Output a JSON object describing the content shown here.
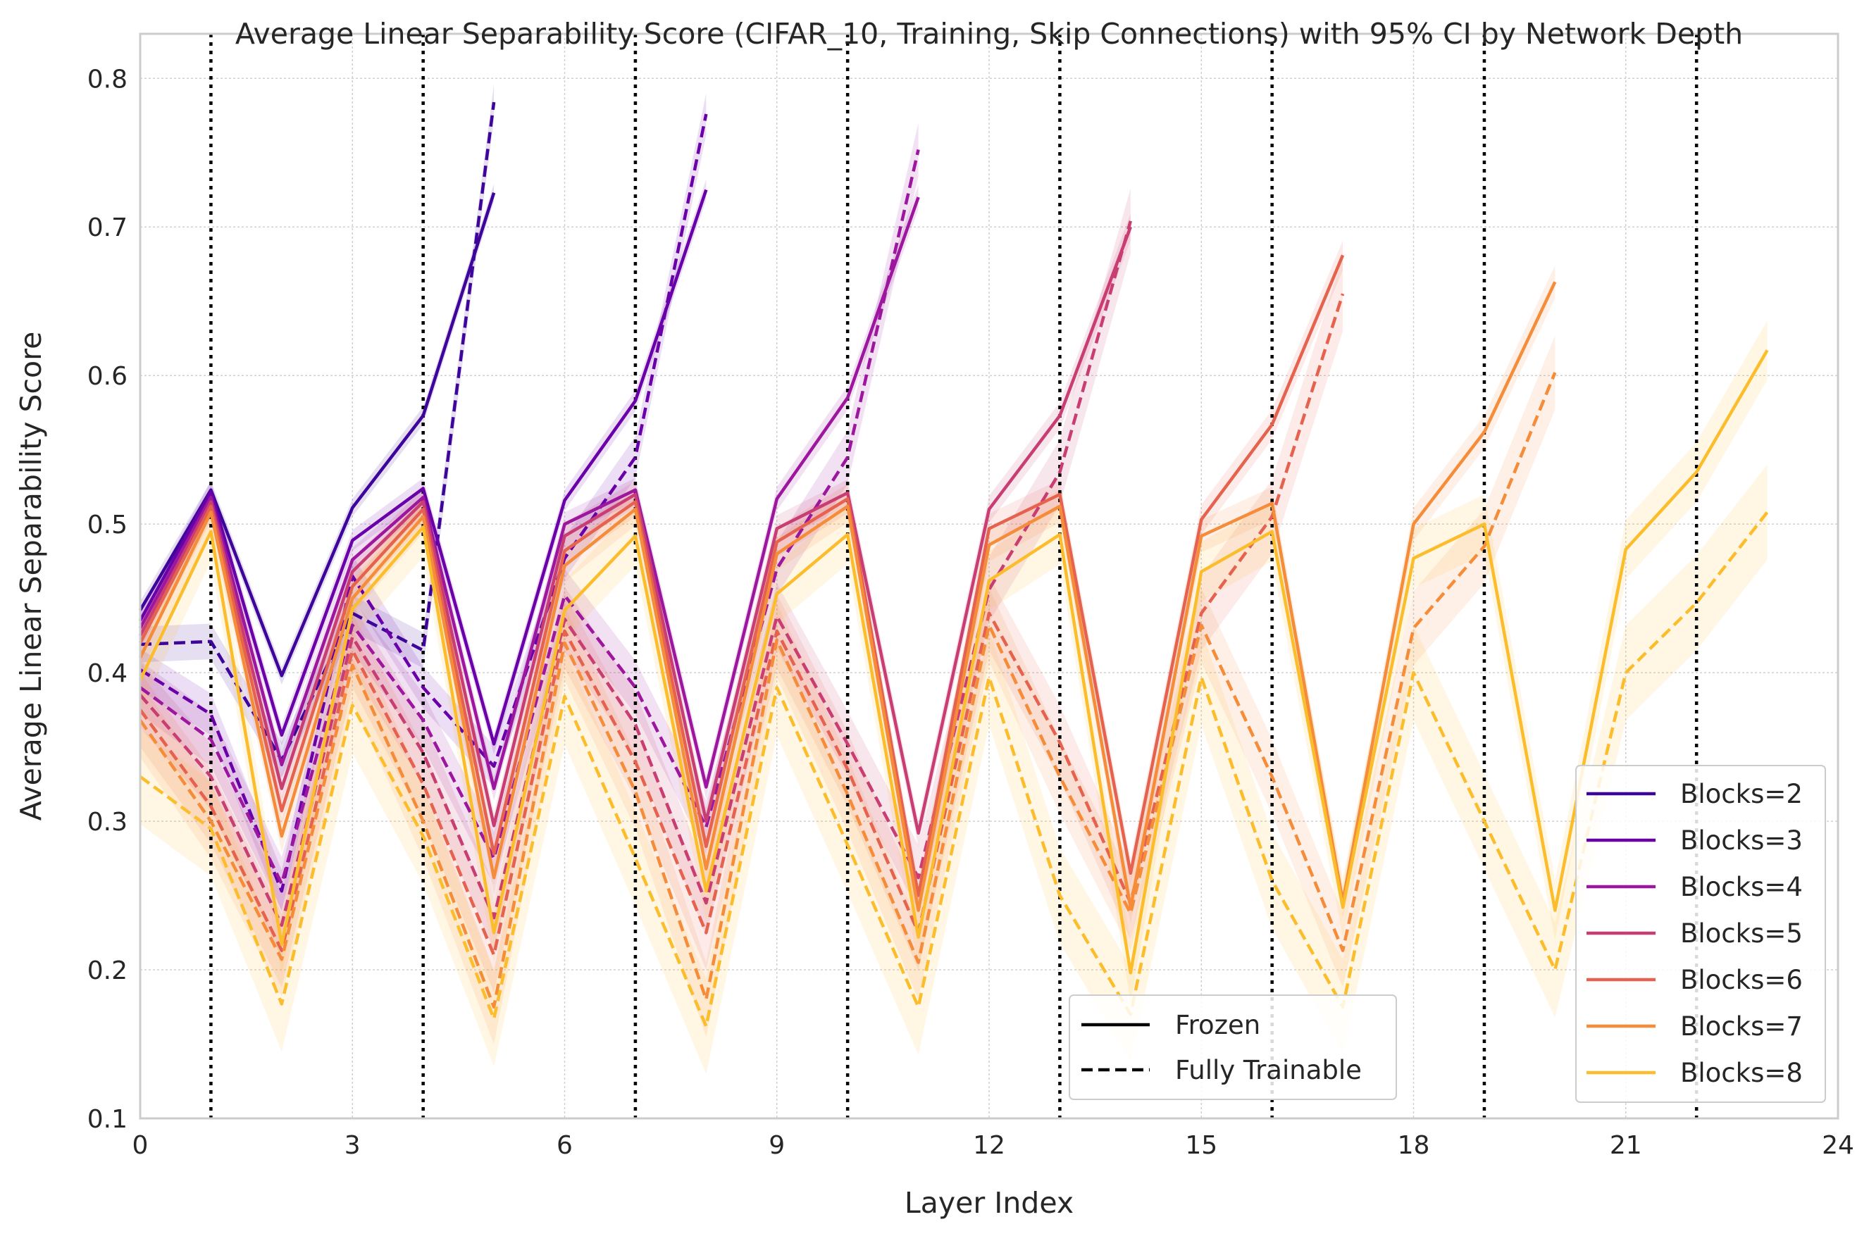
{
  "chart_data": {
    "type": "line",
    "title": "Average Linear Separability Score (CIFAR_10, Training, Skip Connections) with 95% CI by Network Depth",
    "xlabel": "Layer Index",
    "ylabel": "Average Linear Separability Score",
    "xlim": [
      0,
      24
    ],
    "ylim": [
      0.1,
      0.83
    ],
    "xticks": [
      0,
      3,
      6,
      9,
      12,
      15,
      18,
      21,
      24
    ],
    "yticks": [
      0.1,
      0.2,
      0.3,
      0.4,
      0.5,
      0.6,
      0.7,
      0.8
    ],
    "grid": true,
    "block_boundaries": [
      1,
      4,
      7,
      10,
      13,
      16,
      19,
      22
    ],
    "style_legend": {
      "placement": "lower-center",
      "items": [
        {
          "label": "Frozen",
          "dash": "solid"
        },
        {
          "label": "Fully Trainable",
          "dash": "dashed"
        }
      ]
    },
    "series_legend_placement": "lower-right",
    "series": [
      {
        "name": "Blocks=2",
        "color": "#3d0599",
        "frozen": [
          0.442,
          0.523,
          0.398,
          0.511,
          0.573,
          0.723
        ],
        "frozen_ci": 0.006,
        "trainable": [
          0.419,
          0.421,
          0.341,
          0.44,
          0.415,
          0.784
        ],
        "trainable_ci": 0.012
      },
      {
        "name": "Blocks=3",
        "color": "#6a00a8",
        "frozen": [
          0.435,
          0.522,
          0.358,
          0.489,
          0.524,
          0.352,
          0.516,
          0.583,
          0.725
        ],
        "frozen_ci": 0.007,
        "trainable": [
          0.402,
          0.372,
          0.253,
          0.465,
          0.39,
          0.337,
          0.477,
          0.545,
          0.776
        ],
        "trainable_ci": 0.014
      },
      {
        "name": "Blocks=4",
        "color": "#9c179e",
        "frozen": [
          0.43,
          0.518,
          0.338,
          0.476,
          0.518,
          0.322,
          0.5,
          0.523,
          0.323,
          0.517,
          0.585,
          0.72
        ],
        "frozen_ci": 0.008,
        "trainable": [
          0.39,
          0.355,
          0.258,
          0.432,
          0.368,
          0.275,
          0.452,
          0.39,
          0.296,
          0.47,
          0.545,
          0.752
        ],
        "trainable_ci": 0.018
      },
      {
        "name": "Blocks=5",
        "color": "#c83e73",
        "frozen": [
          0.425,
          0.515,
          0.322,
          0.468,
          0.515,
          0.297,
          0.492,
          0.52,
          0.3,
          0.497,
          0.521,
          0.292,
          0.51,
          0.573,
          0.7
        ],
        "frozen_ci": 0.009,
        "trainable": [
          0.385,
          0.33,
          0.23,
          0.424,
          0.346,
          0.235,
          0.436,
          0.365,
          0.245,
          0.438,
          0.352,
          0.262,
          0.456,
          0.535,
          0.704
        ],
        "trainable_ci": 0.022
      },
      {
        "name": "Blocks=6",
        "color": "#e5624f",
        "frozen": [
          0.42,
          0.512,
          0.307,
          0.458,
          0.51,
          0.278,
          0.482,
          0.515,
          0.283,
          0.488,
          0.517,
          0.25,
          0.497,
          0.52,
          0.265,
          0.503,
          0.567,
          0.681
        ],
        "frozen_ci": 0.01,
        "trainable": [
          0.375,
          0.31,
          0.213,
          0.415,
          0.325,
          0.21,
          0.428,
          0.34,
          0.225,
          0.428,
          0.335,
          0.225,
          0.44,
          0.353,
          0.245,
          0.44,
          0.505,
          0.655
        ],
        "trainable_ci": 0.025
      },
      {
        "name": "Blocks=7",
        "color": "#f58c3a",
        "frozen": [
          0.41,
          0.508,
          0.29,
          0.45,
          0.505,
          0.262,
          0.472,
          0.51,
          0.268,
          0.48,
          0.512,
          0.24,
          0.486,
          0.512,
          0.242,
          0.492,
          0.514,
          0.246,
          0.5,
          0.562,
          0.663
        ],
        "frozen_ci": 0.011,
        "trainable": [
          0.368,
          0.3,
          0.207,
          0.405,
          0.3,
          0.175,
          0.42,
          0.32,
          0.18,
          0.422,
          0.318,
          0.205,
          0.432,
          0.33,
          0.238,
          0.432,
          0.33,
          0.213,
          0.43,
          0.485,
          0.602
        ],
        "trainable_ci": 0.025
      },
      {
        "name": "Blocks=8",
        "color": "#fcbd2c",
        "frozen": [
          0.395,
          0.495,
          0.217,
          0.443,
          0.498,
          0.225,
          0.442,
          0.492,
          0.253,
          0.453,
          0.493,
          0.222,
          0.462,
          0.493,
          0.198,
          0.468,
          0.495,
          0.242,
          0.477,
          0.5,
          0.24,
          0.483,
          0.535,
          0.617
        ],
        "frozen_ci": 0.02,
        "trainable": [
          0.33,
          0.295,
          0.177,
          0.378,
          0.29,
          0.167,
          0.384,
          0.275,
          0.162,
          0.39,
          0.284,
          0.175,
          0.397,
          0.25,
          0.17,
          0.397,
          0.26,
          0.175,
          0.4,
          0.3,
          0.2,
          0.4,
          0.447,
          0.508
        ],
        "trainable_ci": 0.032
      }
    ]
  }
}
